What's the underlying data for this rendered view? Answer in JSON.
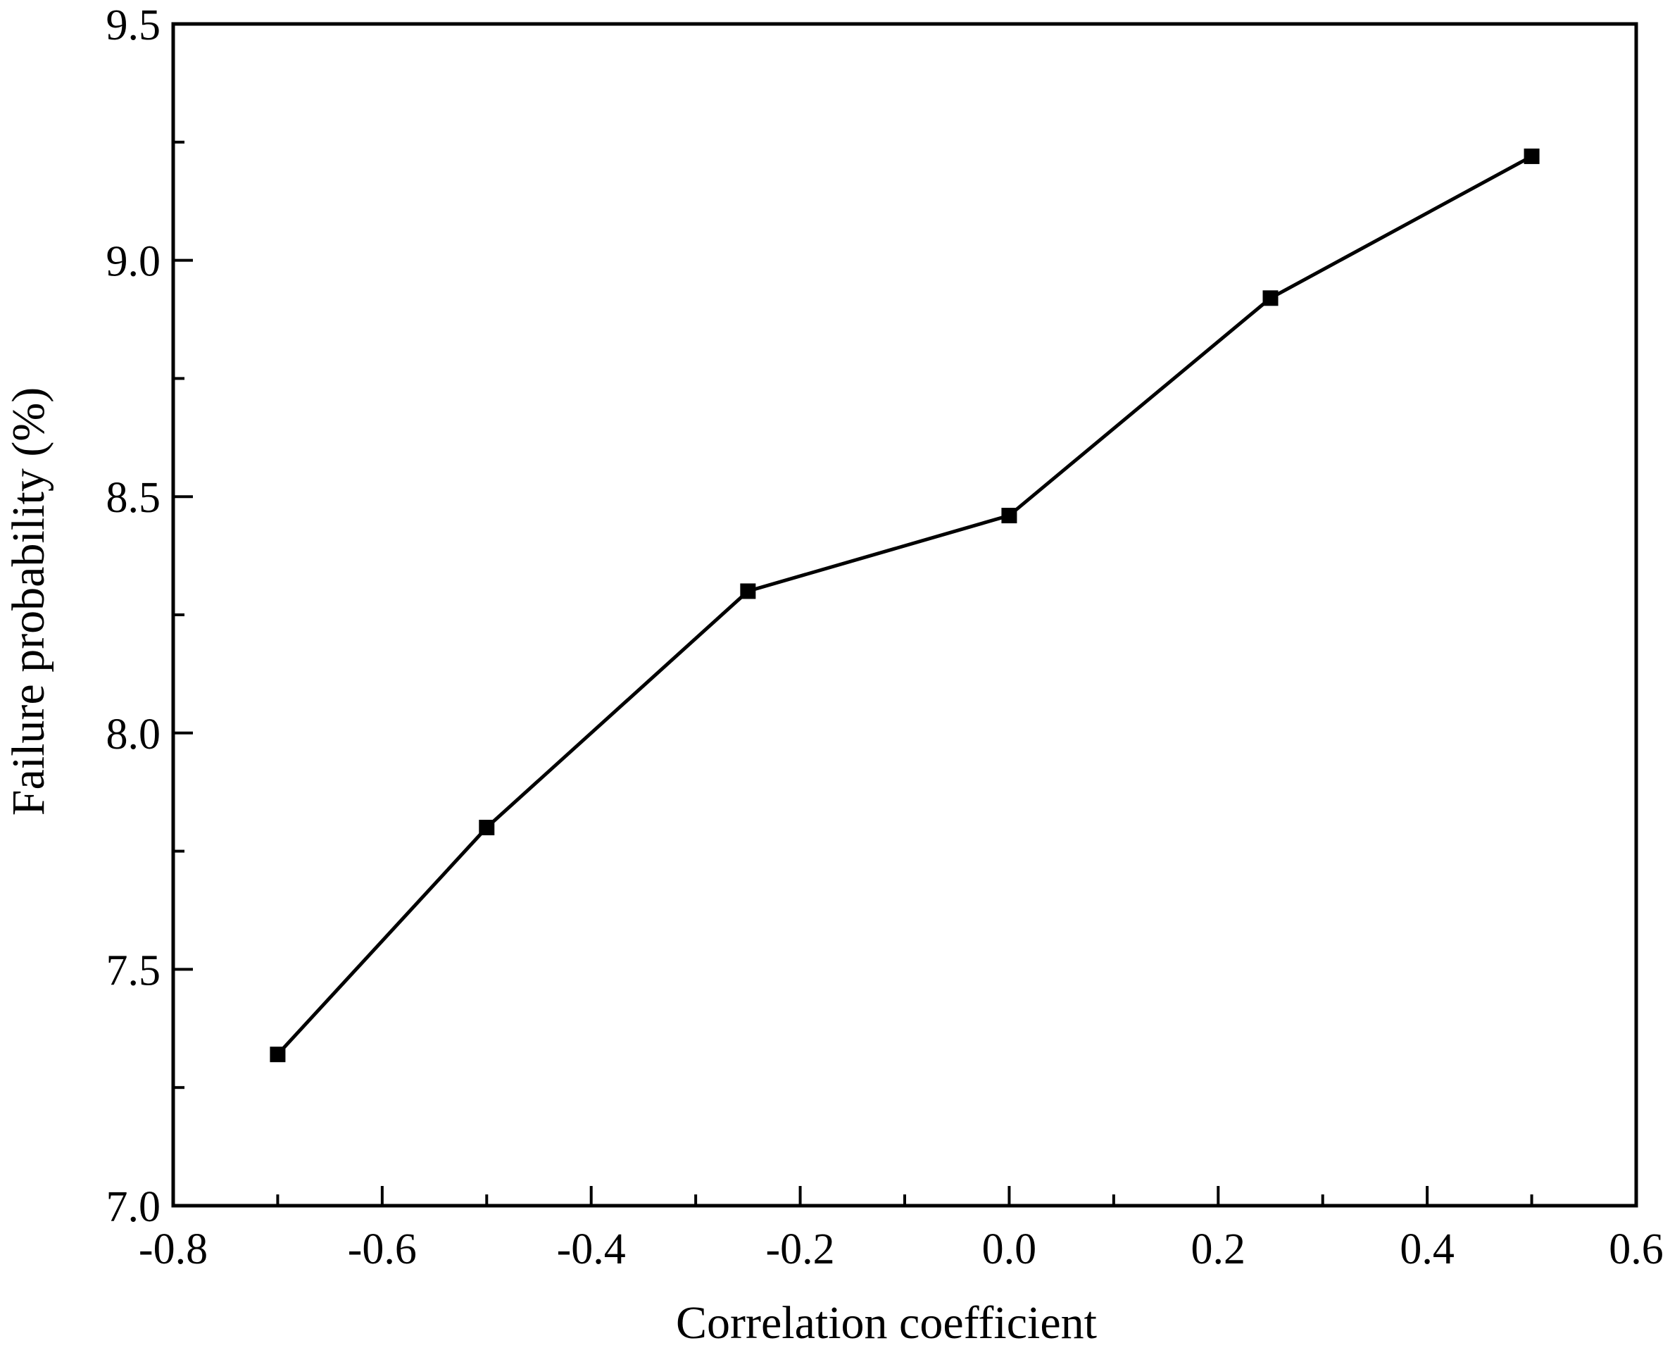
{
  "chart_data": {
    "type": "line",
    "title": "",
    "xlabel": "Correlation coefficient",
    "ylabel": "Failure probability (%)",
    "xlim": [
      -0.8,
      0.6
    ],
    "ylim": [
      7.0,
      9.5
    ],
    "x_ticks": [
      -0.8,
      -0.6,
      -0.4,
      -0.2,
      0.0,
      0.2,
      0.4,
      0.6
    ],
    "x_tick_labels": [
      "-0.8",
      "-0.6",
      "-0.4",
      "-0.2",
      "0.0",
      "0.2",
      "0.4",
      "0.6"
    ],
    "y_ticks": [
      7.0,
      7.5,
      8.0,
      8.5,
      9.0,
      9.5
    ],
    "y_tick_labels": [
      "7.0",
      "7.5",
      "8.0",
      "8.5",
      "9.0",
      "9.5"
    ],
    "x_minor_step": 0.1,
    "y_minor_step": 0.25,
    "grid": false,
    "legend": "none",
    "marker": "square",
    "colors": {
      "line": "#000000",
      "axes": "#000000",
      "background": "#ffffff"
    },
    "series": [
      {
        "x": [
          -0.7,
          -0.5,
          -0.25,
          0.0,
          0.25,
          0.5
        ],
        "y": [
          7.32,
          7.8,
          8.3,
          8.46,
          8.92,
          9.22
        ]
      }
    ]
  }
}
